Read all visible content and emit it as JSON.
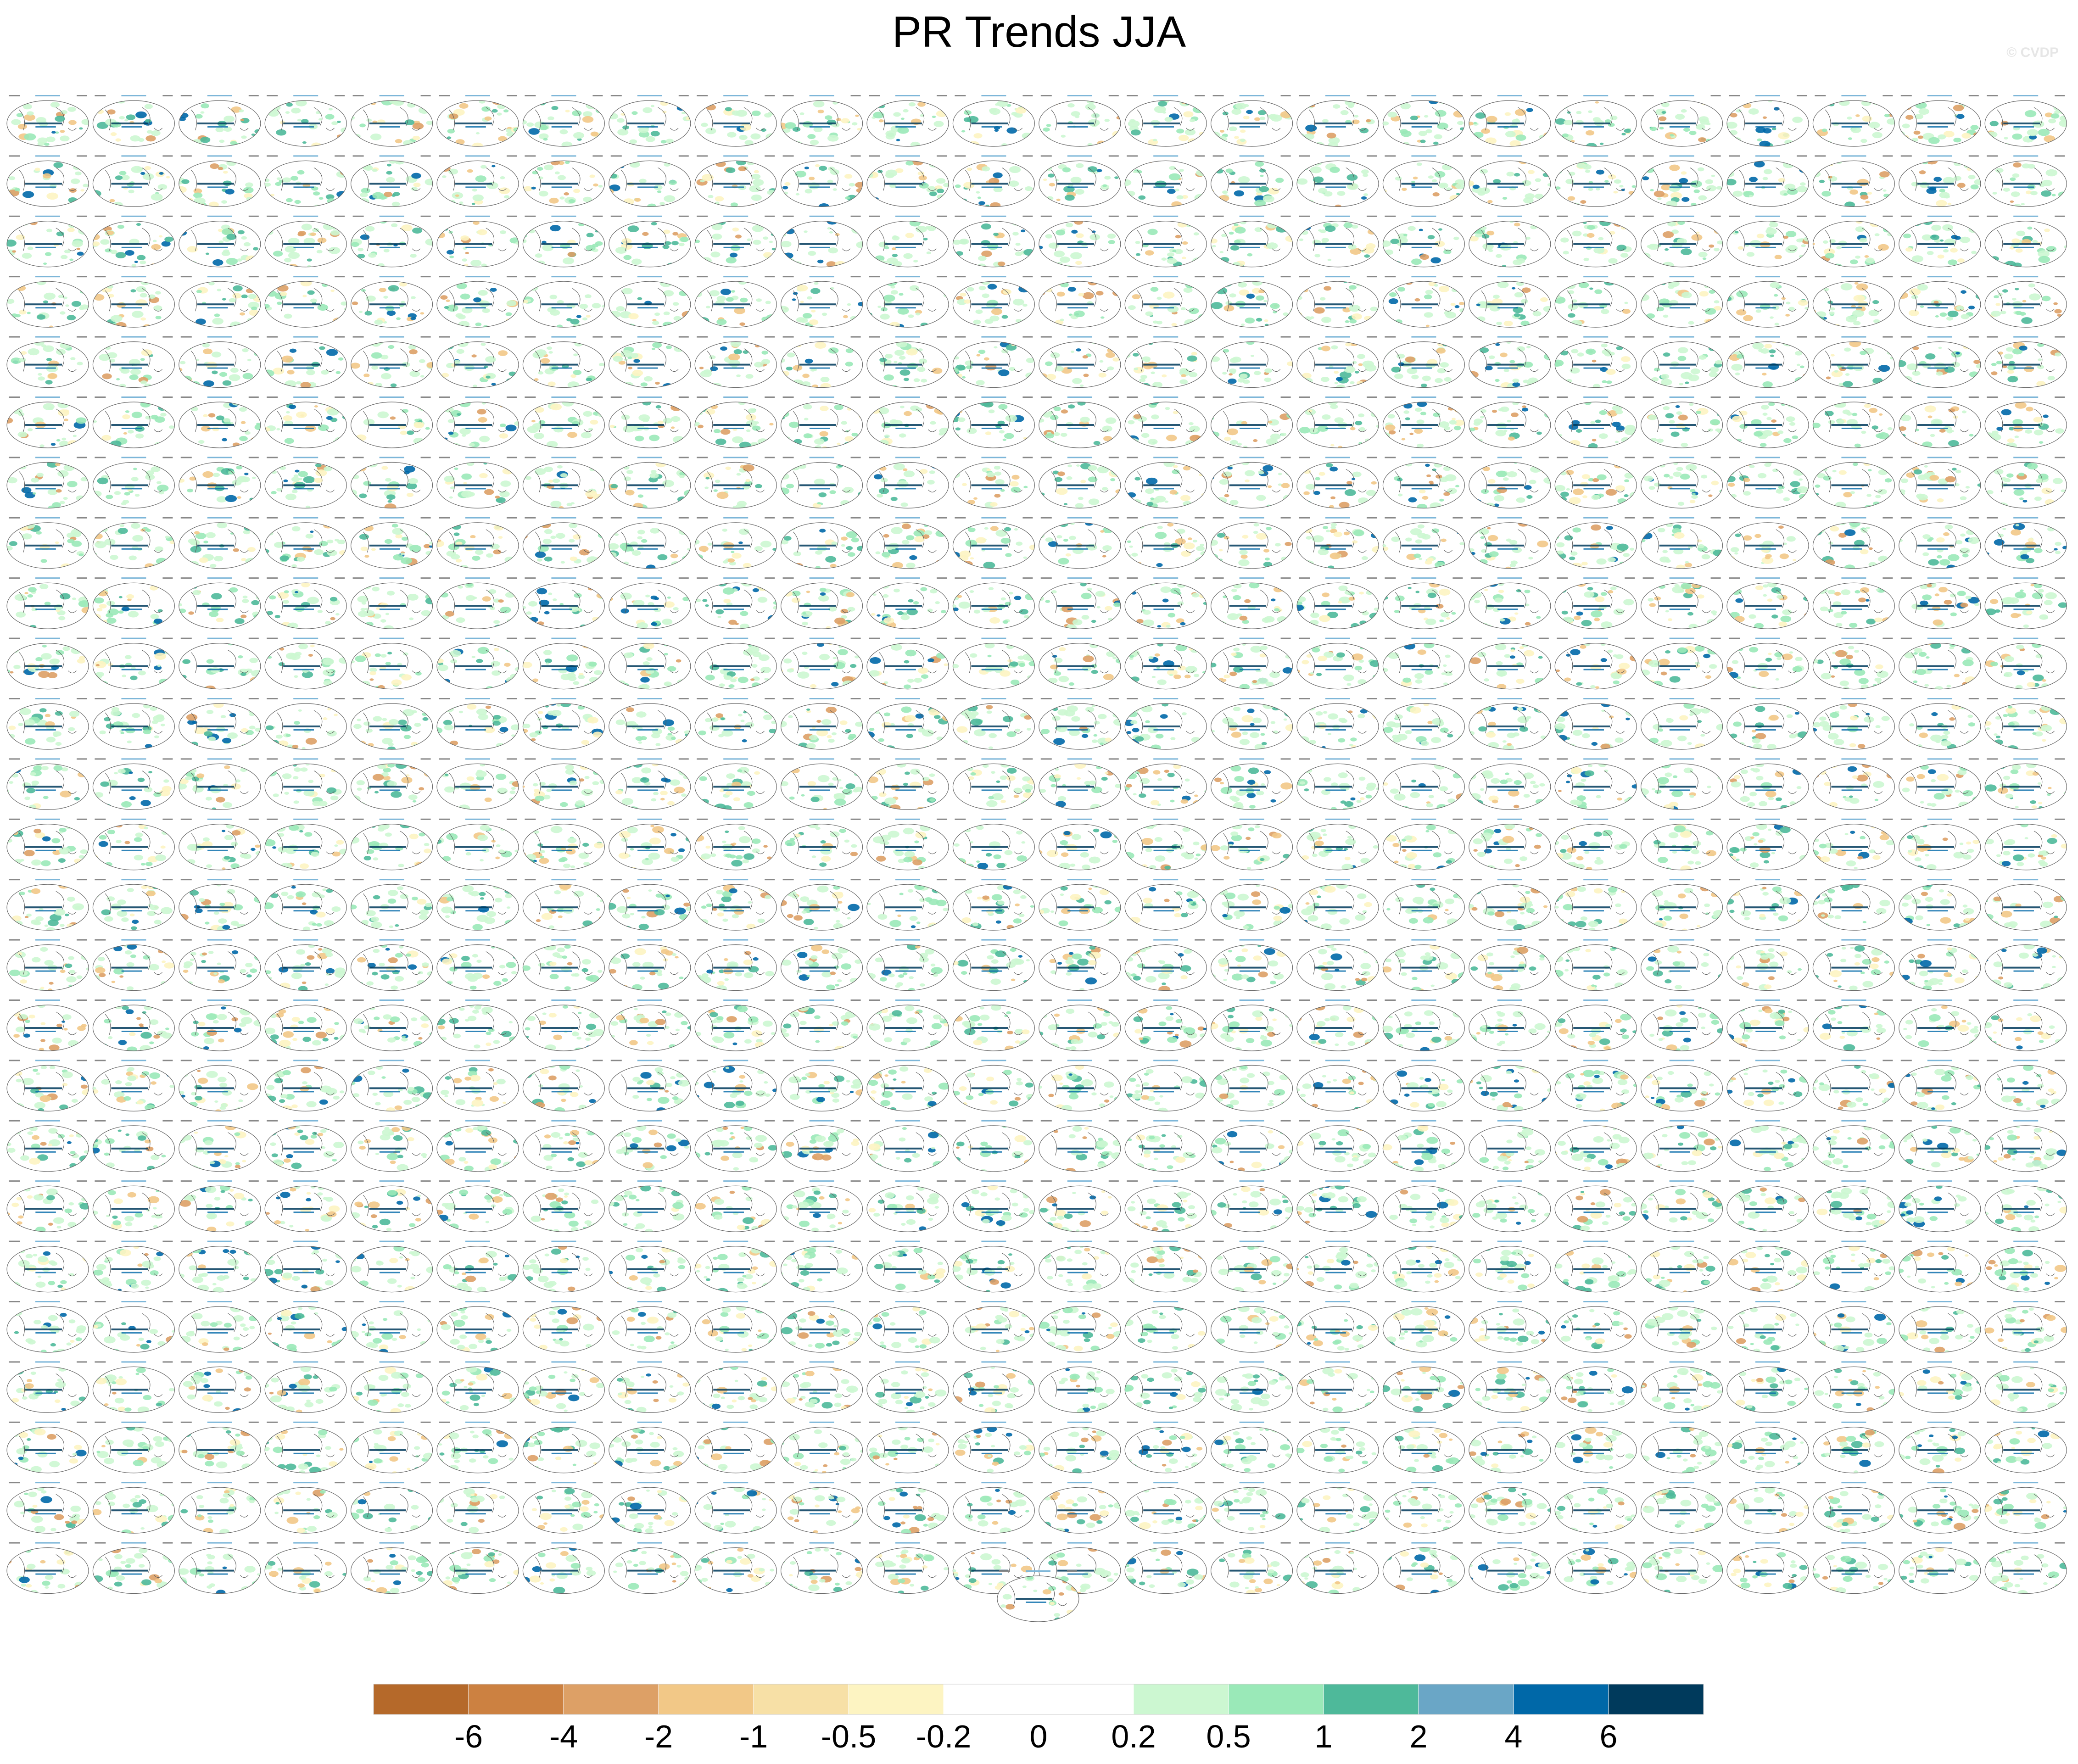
{
  "title": "PR Trends JJA",
  "watermark": "© CVDP",
  "chart_data": {
    "type": "heatmap",
    "title": "PR Trends JJA",
    "description_panels": {
      "grid_rows": 25,
      "grid_cols": 24,
      "extra_panels_below": 1,
      "projection": "global map (ellipse)"
    },
    "colorbar": {
      "colors": [
        "#b5692a",
        "#cc8141",
        "#dda066",
        "#f2c887",
        "#f7e0a6",
        "#fdf4c2",
        "#ffffff",
        "#ffffff",
        "#ccf7d1",
        "#9ae9b8",
        "#4eb99a",
        "#6aa6c6",
        "#0068a8",
        "#003a5c"
      ],
      "tick_labels": [
        "-6",
        "-4",
        "-2",
        "-1",
        "-0.5",
        "-0.2",
        "0",
        "0.2",
        "0.5",
        "1",
        "2",
        "4",
        "6"
      ]
    }
  }
}
